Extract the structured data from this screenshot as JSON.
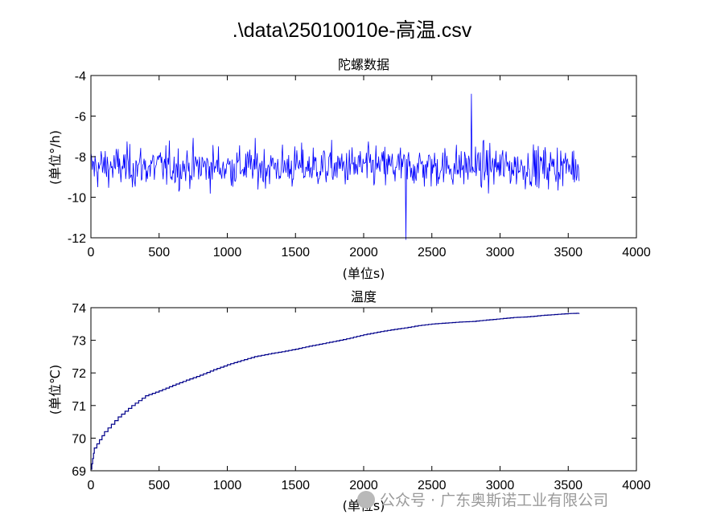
{
  "figure_title": ".\\data\\25010010e-高温.csv",
  "watermark": {
    "text": "公众号 · 广东奥斯诺工业有限公司",
    "icon": "wechat-icon"
  },
  "colors": {
    "gyro_line": "#0000ff",
    "temp_line": "#00008b",
    "axes": "#000000"
  },
  "chart_data": [
    {
      "type": "line",
      "title": "陀螺数据",
      "xlabel": "(单位s)",
      "ylabel": "(单位°/h)",
      "xlim": [
        0,
        4000
      ],
      "ylim": [
        -12,
        -4
      ],
      "xticks": [
        0,
        500,
        1000,
        1500,
        2000,
        2500,
        3000,
        3500,
        4000
      ],
      "yticks": [
        -12,
        -10,
        -8,
        -6,
        -4
      ],
      "grid": false,
      "series": [
        {
          "x_range": [
            0,
            3580
          ],
          "sample_step": 5,
          "mean": -8.5,
          "typical_band": [
            -10,
            -7
          ],
          "extremes": {
            "max": -4.9,
            "max_at": 2790,
            "min": -12.1,
            "min_at": 2310
          }
        }
      ]
    },
    {
      "type": "line",
      "title": "温度",
      "xlabel": "(单位s)",
      "ylabel": "(单位℃)",
      "xlim": [
        0,
        4000
      ],
      "ylim": [
        69,
        74
      ],
      "xticks": [
        0,
        500,
        1000,
        1500,
        2000,
        2500,
        3000,
        3500,
        4000
      ],
      "yticks": [
        69,
        70,
        71,
        72,
        73,
        74
      ],
      "grid": false,
      "series": [
        {
          "step": true,
          "points": [
            [
              0,
              69.05
            ],
            [
              25,
              69.7
            ],
            [
              100,
              70.2
            ],
            [
              200,
              70.65
            ],
            [
              300,
              71.0
            ],
            [
              400,
              71.3
            ],
            [
              500,
              71.45
            ],
            [
              600,
              71.62
            ],
            [
              700,
              71.78
            ],
            [
              800,
              71.93
            ],
            [
              900,
              72.1
            ],
            [
              1000,
              72.25
            ],
            [
              1100,
              72.38
            ],
            [
              1200,
              72.5
            ],
            [
              1300,
              72.58
            ],
            [
              1400,
              72.65
            ],
            [
              1500,
              72.73
            ],
            [
              1600,
              72.82
            ],
            [
              1700,
              72.9
            ],
            [
              1800,
              72.98
            ],
            [
              1900,
              73.07
            ],
            [
              2000,
              73.17
            ],
            [
              2100,
              73.25
            ],
            [
              2200,
              73.32
            ],
            [
              2300,
              73.38
            ],
            [
              2400,
              73.45
            ],
            [
              2500,
              73.5
            ],
            [
              2600,
              73.53
            ],
            [
              2700,
              73.56
            ],
            [
              2800,
              73.58
            ],
            [
              2900,
              73.62
            ],
            [
              3000,
              73.66
            ],
            [
              3100,
              73.7
            ],
            [
              3200,
              73.72
            ],
            [
              3300,
              73.76
            ],
            [
              3400,
              73.79
            ],
            [
              3500,
              73.82
            ],
            [
              3580,
              73.83
            ]
          ]
        }
      ]
    }
  ]
}
